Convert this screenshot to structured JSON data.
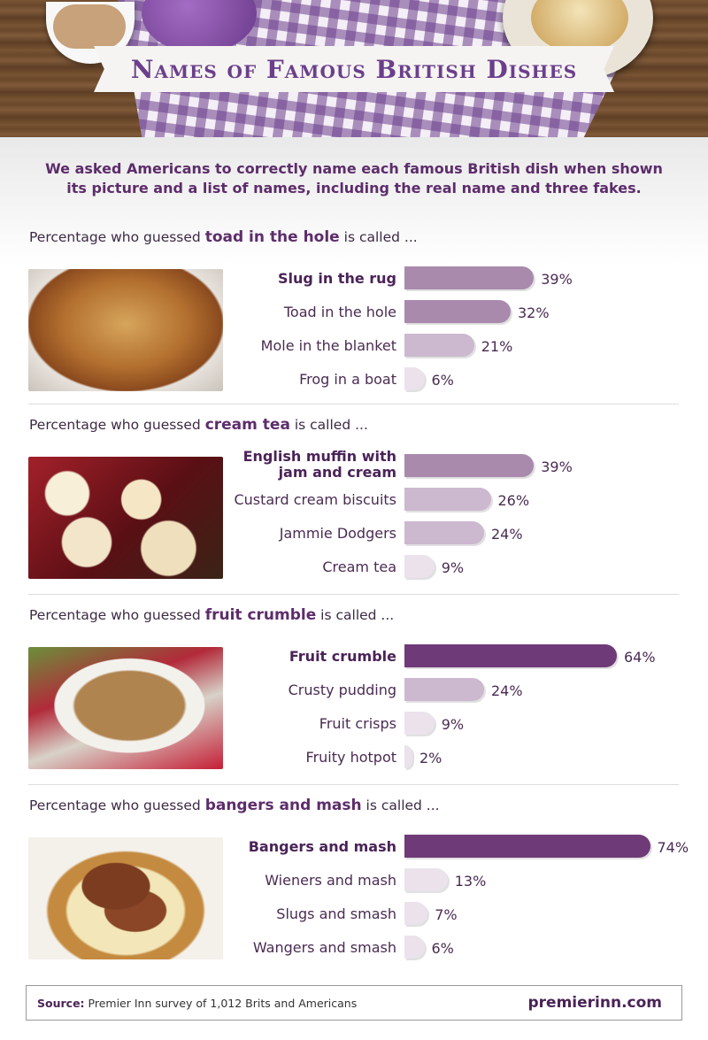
{
  "title": "Names of Famous British Dishes",
  "intro": "We asked Americans to correctly name each famous British dish when shown its picture and a list of names, including the real name and three fakes.",
  "heading_prefix": "Percentage who guessed",
  "heading_suffix": "is called ...",
  "colors": {
    "strong": "#6f3a78",
    "medium": "#a98aad",
    "light": "#ccb8cf",
    "pale": "#ebe2ec"
  },
  "chart_data": [
    {
      "type": "bar",
      "orientation": "horizontal",
      "dish": "toad in the hole",
      "categories": [
        "Slug in the rug",
        "Toad in the hole",
        "Mole in the blanket",
        "Frog in a boat"
      ],
      "values": [
        39,
        32,
        21,
        6
      ],
      "labels": [
        "39%",
        "32%",
        "21%",
        "6%"
      ],
      "correct": "Toad in the hole"
    },
    {
      "type": "bar",
      "orientation": "horizontal",
      "dish": "cream tea",
      "categories": [
        "English muffin with jam and cream",
        "Custard cream biscuits",
        "Jammie Dodgers",
        "Cream tea"
      ],
      "values": [
        39,
        26,
        24,
        9
      ],
      "labels": [
        "39%",
        "26%",
        "24%",
        "9%"
      ],
      "correct": "Cream tea"
    },
    {
      "type": "bar",
      "orientation": "horizontal",
      "dish": "fruit crumble",
      "categories": [
        "Fruit crumble",
        "Crusty pudding",
        "Fruit crisps",
        "Fruity hotpot"
      ],
      "values": [
        64,
        24,
        9,
        2
      ],
      "labels": [
        "64%",
        "24%",
        "9%",
        "2%"
      ],
      "correct": "Fruit crumble"
    },
    {
      "type": "bar",
      "orientation": "horizontal",
      "dish": "bangers and mash",
      "categories": [
        "Bangers and mash",
        "Wieners and mash",
        "Slugs and smash",
        "Wangers and smash"
      ],
      "values": [
        74,
        13,
        7,
        6
      ],
      "labels": [
        "74%",
        "13%",
        "7%",
        "6%"
      ],
      "correct": "Bangers and mash"
    }
  ],
  "footer": {
    "source_label": "Source:",
    "source_text": "Premier Inn survey of 1,012 Brits and Americans",
    "brand": "premierinn.com"
  }
}
